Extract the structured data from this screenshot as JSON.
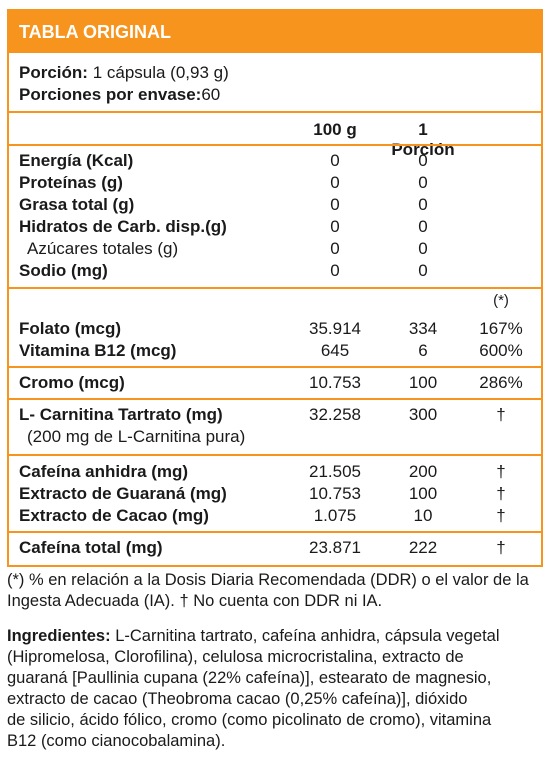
{
  "title": "TABLA ORIGINAL",
  "serving": {
    "label": "Porción:",
    "value": "1 cápsula (0,93 g)"
  },
  "servings_per_pack": {
    "label": "Porciones por envase:",
    "value": "60"
  },
  "columns": {
    "per100": "100 g",
    "portion": "1 Porción",
    "ddr_mark": "(*)"
  },
  "macros": [
    {
      "name": "Energía (Kcal)",
      "per100": "0",
      "portion": "0",
      "bold": true
    },
    {
      "name": "Proteínas (g)",
      "per100": "0",
      "portion": "0",
      "bold": true
    },
    {
      "name": "Grasa total (g)",
      "per100": "0",
      "portion": "0",
      "bold": true
    },
    {
      "name": "Hidratos de Carb. disp.(g)",
      "per100": "0",
      "portion": "0",
      "bold": true
    },
    {
      "name": "Azúcares totales (g)",
      "per100": "0",
      "portion": "0",
      "bold": false
    },
    {
      "name": "Sodio (mg)",
      "per100": "0",
      "portion": "0",
      "bold": true
    }
  ],
  "vitamins": [
    {
      "name": "Folato (mcg)",
      "per100": "35.914",
      "portion": "334",
      "pct": "167%"
    },
    {
      "name": "Vitamina B12 (mcg)",
      "per100": "645",
      "portion": "6",
      "pct": "600%"
    }
  ],
  "cromo": {
    "name": "Cromo (mcg)",
    "per100": "10.753",
    "portion": "100",
    "pct": "286%"
  },
  "carnitina": {
    "name": "L- Carnitina Tartrato (mg)",
    "sub": "(200 mg de L-Carnitina pura)",
    "per100": "32.258",
    "portion": "300",
    "pct": "†"
  },
  "stimulants": [
    {
      "name": "Cafeína anhidra (mg)",
      "per100": "21.505",
      "portion": "200",
      "pct": "†"
    },
    {
      "name": "Extracto de Guaraná (mg)",
      "per100": "10.753",
      "portion": "100",
      "pct": "†"
    },
    {
      "name": "Extracto de Cacao (mg)",
      "per100": "1.075",
      "portion": "10",
      "pct": "†"
    }
  ],
  "caffeine_total": {
    "name": "Cafeína total (mg)",
    "per100": "23.871",
    "portion": "222",
    "pct": "†"
  },
  "footnote": {
    "line1": "(*) % en relación a la Dosis Diaria Recomendada (DDR) o el valor de la",
    "line2": "Ingesta Adecuada (IA). † No cuenta con DDR ni IA."
  },
  "ingredients": {
    "label": "Ingredientes:",
    "line1": " L-Carnitina tartrato, cafeína anhidra, cápsula vegetal",
    "line2": "(Hipromelosa, Clorofilina), celulosa microcristalina, extracto de",
    "line3": "guaraná [Paullinia cupana (22% cafeína)], estearato de magnesio,",
    "line4": "extracto de cacao (Theobroma cacao (0,25% cafeína)], dióxido",
    "line5": "de silicio, ácido fólico, cromo (como picolinato de cromo), vitamina",
    "line6": "B12 (como cianocobalamina)."
  },
  "colors": {
    "accent": "#f7941d",
    "text": "#1a1a1a"
  }
}
